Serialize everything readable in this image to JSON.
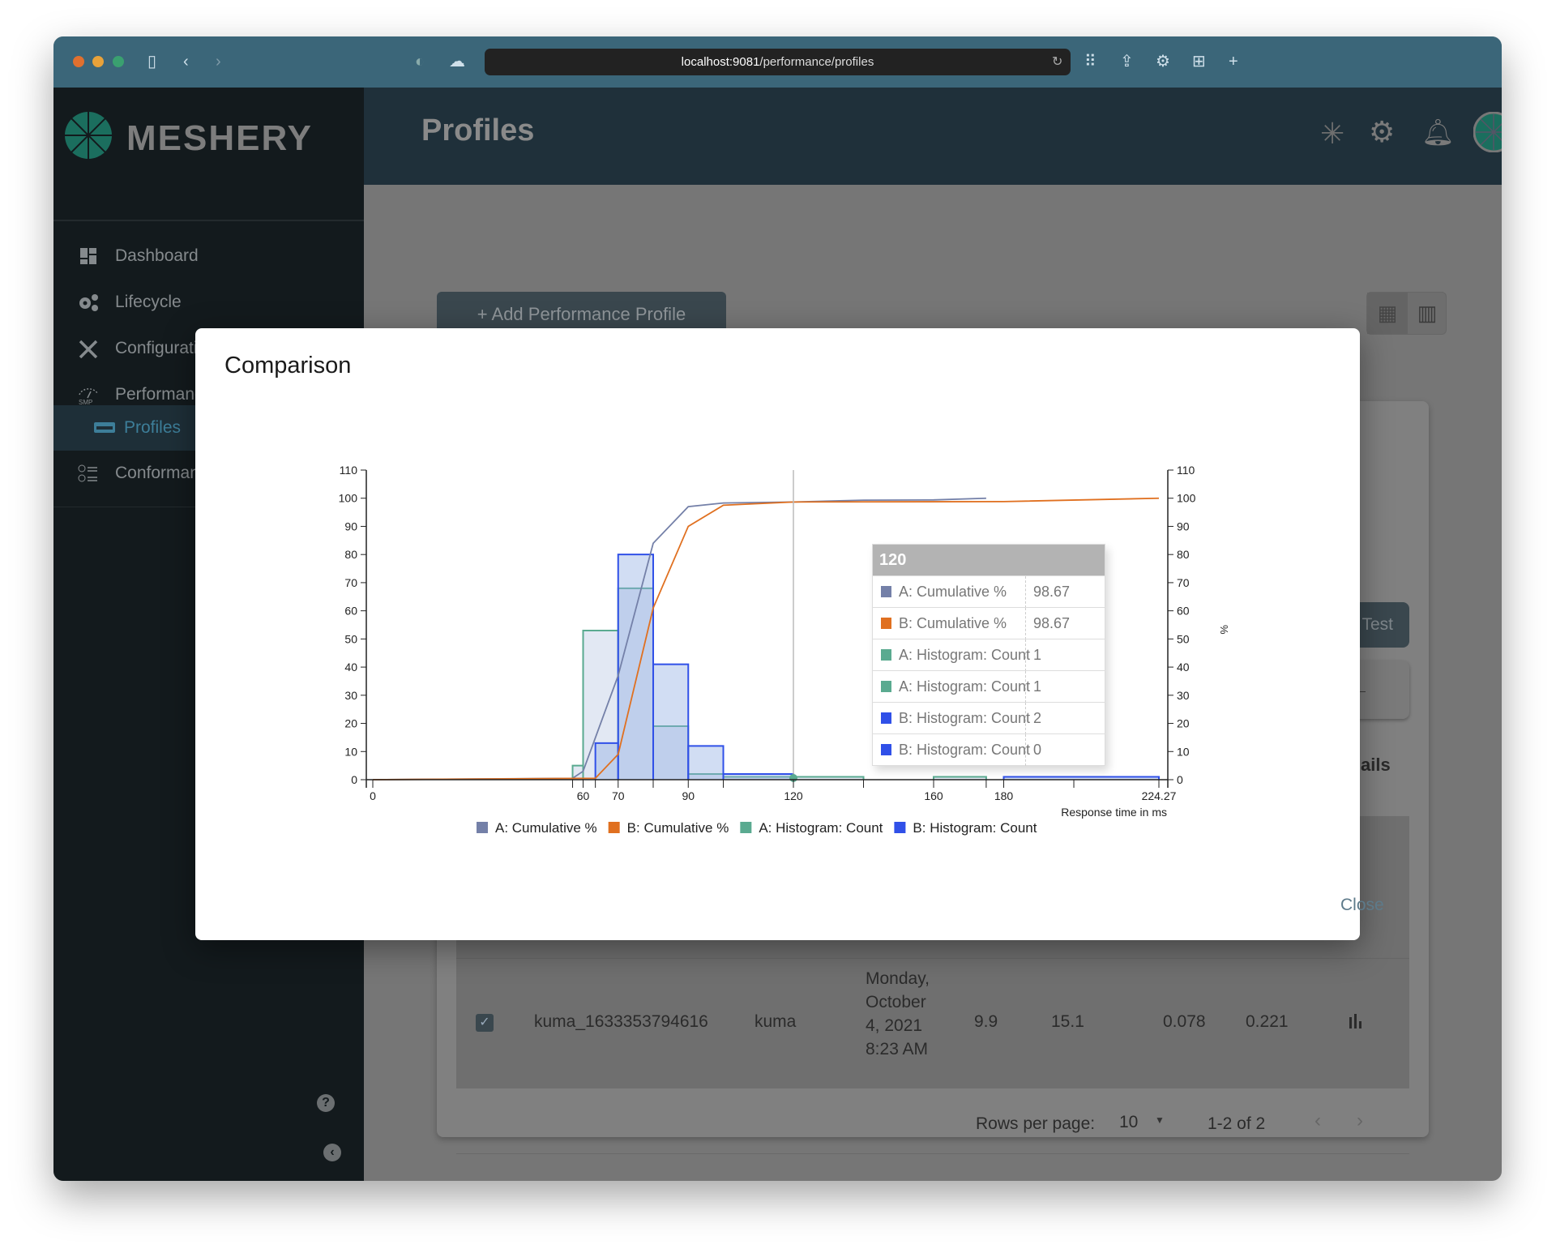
{
  "browser": {
    "url_host": "localhost:9081",
    "url_path": "/performance/profiles"
  },
  "app": {
    "logo_text": "MESHERY",
    "page_title": "Profiles"
  },
  "sidebar": {
    "items": [
      {
        "label": "Dashboard",
        "icon": "dashboard-icon"
      },
      {
        "label": "Lifecycle",
        "icon": "gears-icon"
      },
      {
        "label": "Configuration",
        "icon": "wrench-icon"
      },
      {
        "label": "Performance",
        "icon": "gauge-smp-icon"
      },
      {
        "label": "Profiles",
        "icon": "profiles-icon",
        "active": true
      },
      {
        "label": "Conformance",
        "icon": "checklist-icon"
      }
    ]
  },
  "main": {
    "add_button": "+ Add Performance Profile",
    "test_button": "Test",
    "details_fragment": "ails",
    "row": {
      "checked": true,
      "name": "kuma_1633353794616",
      "mesh": "kuma",
      "date_lines": [
        "Monday,",
        "October",
        "4, 2021",
        "8:23 AM"
      ],
      "v1": "9.9",
      "v2": "15.1",
      "v3": "0.078",
      "v4": "0.221"
    },
    "pagination": {
      "rows_per_page_label": "Rows per page:",
      "rows_per_page": "10",
      "range": "1-2 of 2"
    }
  },
  "modal": {
    "title": "Comparison",
    "close_label": "Close"
  },
  "colors": {
    "a_cum": "#7480a8",
    "b_cum": "#e07020",
    "a_hist": "#5aaa90",
    "b_hist": "#3050e8",
    "accent": "#00b39f"
  },
  "chart_data": {
    "type": "bar+line",
    "xlabel": "Response time in ms",
    "y2label": "%",
    "xlim": [
      0,
      224.27
    ],
    "ylim": [
      0,
      110
    ],
    "y_ticks": [
      0,
      10,
      20,
      30,
      40,
      50,
      60,
      70,
      80,
      90,
      100,
      110
    ],
    "x_tick_values": [
      0,
      57,
      60,
      63.5,
      70,
      80,
      90,
      100,
      120,
      140,
      160,
      175,
      180,
      200,
      224.27
    ],
    "x_tick_labels": [
      "0",
      "60",
      "70",
      "90",
      "120",
      "160",
      "180",
      "224.27"
    ],
    "x_tick_label_values": [
      0,
      60,
      70,
      90,
      120,
      160,
      180,
      224.27
    ],
    "legend": [
      "A: Cumulative %",
      "B: Cumulative %",
      "A: Histogram: Count",
      "B: Histogram: Count"
    ],
    "legend_placement": "bottom",
    "series": [
      {
        "name": "A: Histogram: Count",
        "kind": "histogram",
        "bins": [
          [
            57,
            60,
            5
          ],
          [
            60,
            70,
            53
          ],
          [
            70,
            80,
            68
          ],
          [
            80,
            90,
            19
          ],
          [
            90,
            100,
            2
          ],
          [
            100,
            120,
            1
          ],
          [
            120,
            140,
            1
          ],
          [
            160,
            175,
            1
          ]
        ]
      },
      {
        "name": "B: Histogram: Count",
        "kind": "histogram",
        "bins": [
          [
            63.5,
            70,
            13
          ],
          [
            70,
            80,
            80
          ],
          [
            80,
            90,
            41
          ],
          [
            90,
            100,
            12
          ],
          [
            100,
            120,
            2
          ],
          [
            180,
            224.27,
            1
          ]
        ]
      },
      {
        "name": "A: Cumulative %",
        "kind": "line",
        "points": [
          [
            0,
            0
          ],
          [
            57,
            0.5
          ],
          [
            60,
            3
          ],
          [
            70,
            37
          ],
          [
            80,
            84
          ],
          [
            90,
            97
          ],
          [
            100,
            98.3
          ],
          [
            120,
            98.67
          ],
          [
            140,
            99.3
          ],
          [
            160,
            99.4
          ],
          [
            175,
            100
          ]
        ]
      },
      {
        "name": "B: Cumulative %",
        "kind": "line",
        "points": [
          [
            0,
            0
          ],
          [
            63.5,
            0.5
          ],
          [
            70,
            9
          ],
          [
            80,
            61
          ],
          [
            90,
            90
          ],
          [
            100,
            97.5
          ],
          [
            120,
            98.67
          ],
          [
            180,
            98.8
          ],
          [
            224.27,
            100
          ]
        ]
      }
    ],
    "hover": {
      "x": "120",
      "rows": [
        {
          "name": "A: Cumulative %",
          "value": "98.67",
          "color": "#7480a8"
        },
        {
          "name": "B: Cumulative %",
          "value": "98.67",
          "color": "#e07020"
        },
        {
          "name": "A: Histogram: Count",
          "value": "1",
          "color": "#5aaa90"
        },
        {
          "name": "A: Histogram: Count",
          "value": "1",
          "color": "#5aaa90"
        },
        {
          "name": "B: Histogram: Count",
          "value": "2",
          "color": "#3050e8"
        },
        {
          "name": "B: Histogram: Count",
          "value": "0",
          "color": "#3050e8"
        }
      ]
    }
  }
}
